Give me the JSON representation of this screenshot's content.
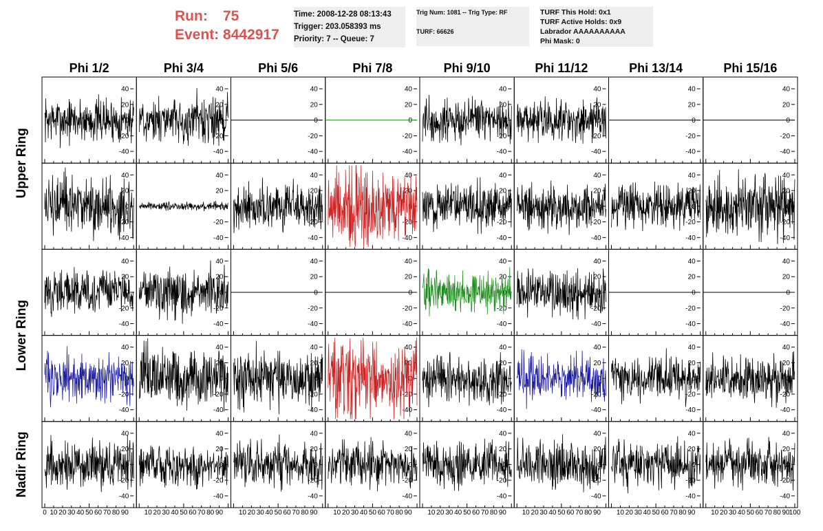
{
  "header": {
    "run_label": "Run:",
    "run_value": "75",
    "event_label": "Event:",
    "event_value": "8442917",
    "colors": {
      "run_event": "#d9534f",
      "info_bg": "#eeeeee"
    }
  },
  "info_time": {
    "time": "Time: 2008-12-28 08:13:43",
    "trigger": "Trigger: 203.058393 ms",
    "priority": "Priority: 7 -- Queue: 7"
  },
  "info_trig": {
    "trig": "Trig Num: 1081 -- Trig Type: RF",
    "turf": "TURF: 66626"
  },
  "info_turf": {
    "this_hold": "TURF This Hold: 0x1",
    "active_holds": "TURF Active Holds: 0x9",
    "labrador": "Labrador AAAAAAAAAA",
    "phi_mask": "Phi Mask: 0"
  },
  "chart_data": {
    "type": "line",
    "columns": [
      "Phi 1/2",
      "Phi 3/4",
      "Phi 5/6",
      "Phi 7/8",
      "Phi 9/10",
      "Phi 11/12",
      "Phi 13/14",
      "Phi 15/16"
    ],
    "rows": [
      {
        "label": "Upper Ring",
        "span": 2
      },
      {
        "label": "Lower Ring",
        "span": 2
      },
      {
        "label": "Nadir Ring",
        "span": 1
      }
    ],
    "y_ticks": [
      40,
      20,
      0,
      -20,
      -40
    ],
    "y_range": [
      -55,
      55
    ],
    "x_range": [
      0,
      100
    ],
    "x_tick_labels": [
      "0",
      "10",
      "20",
      "30",
      "40",
      "50",
      "60",
      "70",
      "80",
      "90",
      "100"
    ],
    "colors": {
      "black": "#000000",
      "red": "#cc2222",
      "green": "#1e8c1e",
      "blue": "#1a1aa0"
    },
    "panels": [
      [
        "normal",
        "normal",
        "flat",
        "flat-green",
        "normal",
        "normal",
        "flat",
        "flat"
      ],
      [
        "strong",
        "tiny",
        "normal",
        "red",
        "normal",
        "normal",
        "normal",
        "strong"
      ],
      [
        "normal",
        "normal",
        "flat",
        "flat",
        "green",
        "normal",
        "flat",
        "flat"
      ],
      [
        "blue",
        "strong",
        "strong",
        "red",
        "normal",
        "blue",
        "normal",
        "normal"
      ],
      [
        "normal",
        "normal",
        "normal",
        "normal",
        "normal",
        "normal",
        "normal",
        "normal"
      ]
    ]
  }
}
